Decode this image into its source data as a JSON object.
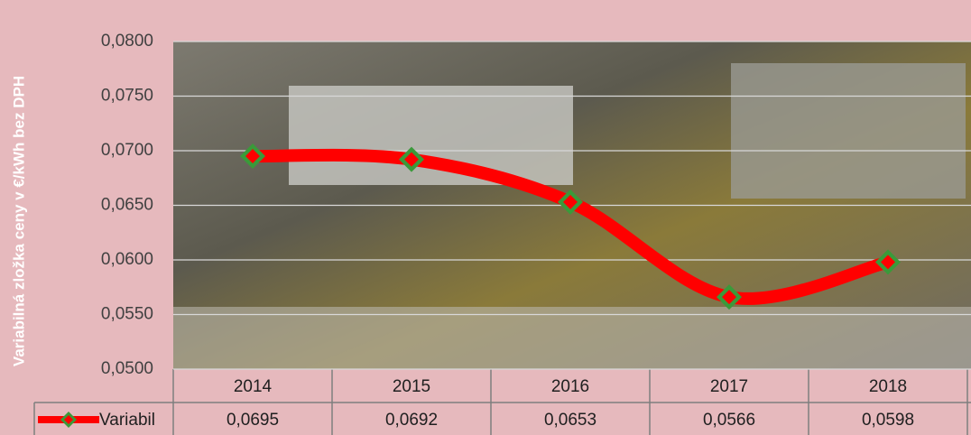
{
  "chart_data": {
    "type": "line",
    "y_label": "Variabilná zložka ceny v €/kWh bez DPH",
    "categories": [
      "2014",
      "2015",
      "2016",
      "2017",
      "2018"
    ],
    "series": [
      {
        "name": "Variabil",
        "color": "#ff0000",
        "marker_color": "#3a9a3a",
        "values": [
          0.0695,
          0.0692,
          0.0653,
          0.0566,
          0.0598
        ],
        "value_labels": [
          "0,0695",
          "0,0692",
          "0,0653",
          "0,0566",
          "0,0598"
        ]
      }
    ],
    "ylim": [
      0.05,
      0.08
    ],
    "yticks": [
      {
        "value": 0.05,
        "label": "0,0500"
      },
      {
        "value": 0.055,
        "label": "0,0550"
      },
      {
        "value": 0.06,
        "label": "0,0600"
      },
      {
        "value": 0.065,
        "label": "0,0650"
      },
      {
        "value": 0.07,
        "label": "0,0700"
      },
      {
        "value": 0.075,
        "label": "0,0750"
      },
      {
        "value": 0.08,
        "label": "0,0800"
      }
    ],
    "grid": true
  }
}
